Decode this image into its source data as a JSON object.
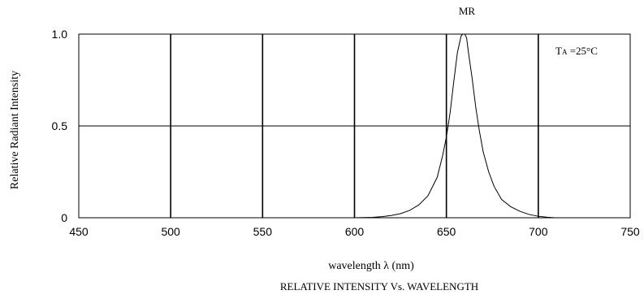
{
  "chart_data": {
    "type": "line",
    "title": "RELATIVE INTENSITY Vs. WAVELENGTH",
    "series_label": "MR",
    "annotation": {
      "main": "T",
      "sub": "A",
      "rest": " =25°C"
    },
    "xlabel": "wavelength  λ (nm)",
    "ylabel": "Relative  Radiant  Intensity",
    "xlim": [
      450,
      750
    ],
    "ylim": [
      0,
      1
    ],
    "x_ticks": [
      450,
      500,
      550,
      600,
      650,
      700,
      750
    ],
    "y_ticks": [
      {
        "value": 0,
        "label": "0"
      },
      {
        "value": 0.5,
        "label": "0.5"
      },
      {
        "value": 1,
        "label": "1.0"
      }
    ],
    "grid": true,
    "series": [
      {
        "name": "MR",
        "x": [
          600,
          610,
          615,
          620,
          625,
          630,
          635,
          640,
          645,
          648,
          650,
          652,
          654,
          656,
          658,
          659,
          660,
          661,
          662,
          664,
          666,
          668,
          670,
          673,
          676,
          680,
          685,
          690,
          695,
          700,
          705,
          709
        ],
        "y": [
          0.0,
          0.002,
          0.006,
          0.012,
          0.022,
          0.04,
          0.07,
          0.12,
          0.22,
          0.34,
          0.44,
          0.57,
          0.74,
          0.9,
          0.99,
          1.0,
          1.0,
          0.98,
          0.9,
          0.76,
          0.6,
          0.47,
          0.36,
          0.25,
          0.17,
          0.1,
          0.06,
          0.035,
          0.018,
          0.008,
          0.003,
          0.0
        ]
      }
    ]
  }
}
